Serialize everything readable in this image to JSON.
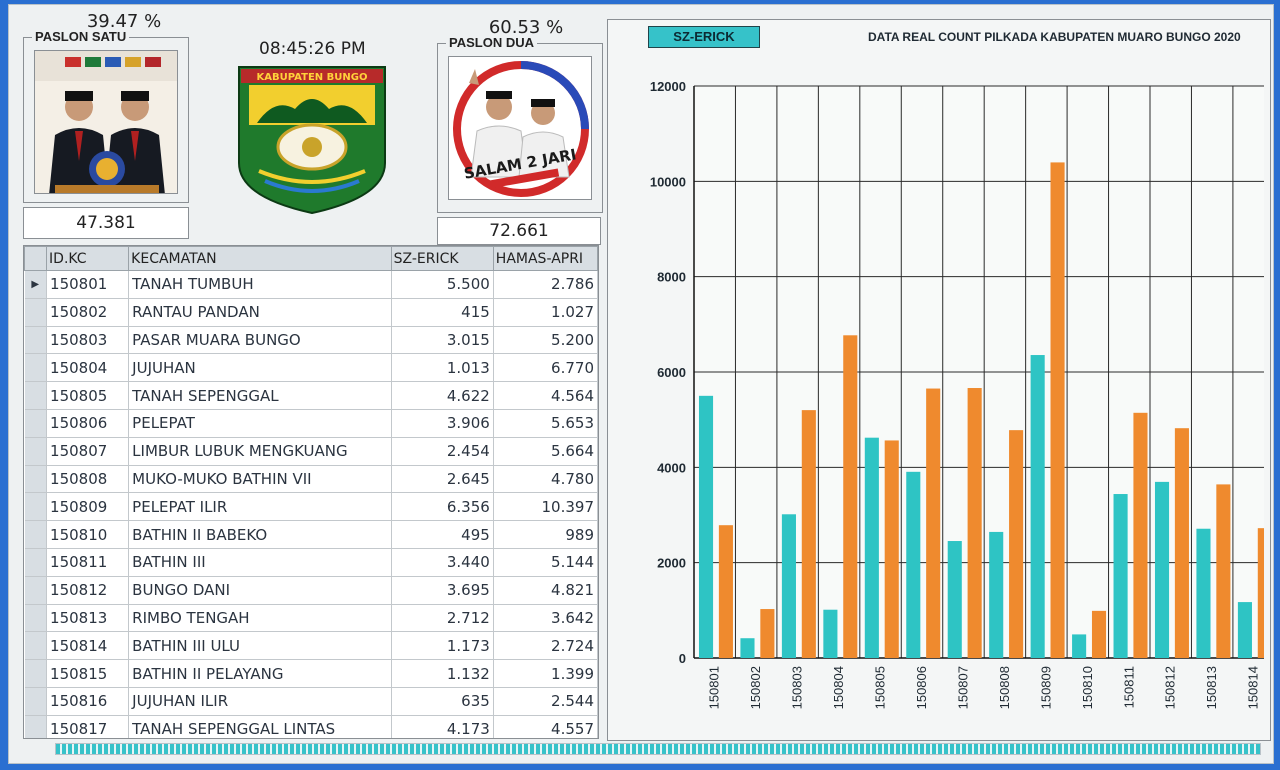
{
  "paslon_satu": {
    "percent": "39.47 %",
    "label": "PASLON SATU",
    "count": "47.381"
  },
  "paslon_dua": {
    "percent": "60.53 %",
    "label": "PASLON DUA",
    "count": "72.661"
  },
  "clock": "08:45:26 PM",
  "logo": {
    "banner_text": "KABUPATEN BUNGO"
  },
  "poster_text": "SALAM 2 JARI",
  "table": {
    "columns": [
      "ID.KC",
      "KECAMATAN",
      "SZ-ERICK",
      "HAMAS-APRI"
    ],
    "rows": [
      [
        "150801",
        "TANAH TUMBUH",
        "5.500",
        "2.786"
      ],
      [
        "150802",
        "RANTAU PANDAN",
        "415",
        "1.027"
      ],
      [
        "150803",
        "PASAR MUARA BUNGO",
        "3.015",
        "5.200"
      ],
      [
        "150804",
        "JUJUHAN",
        "1.013",
        "6.770"
      ],
      [
        "150805",
        "TANAH SEPENGGAL",
        "4.622",
        "4.564"
      ],
      [
        "150806",
        "PELEPAT",
        "3.906",
        "5.653"
      ],
      [
        "150807",
        "LIMBUR LUBUK MENGKUANG",
        "2.454",
        "5.664"
      ],
      [
        "150808",
        "MUKO-MUKO BATHIN VII",
        "2.645",
        "4.780"
      ],
      [
        "150809",
        "PELEPAT ILIR",
        "6.356",
        "10.397"
      ],
      [
        "150810",
        "BATHIN II BABEKO",
        "495",
        "989"
      ],
      [
        "150811",
        "BATHIN III",
        "3.440",
        "5.144"
      ],
      [
        "150812",
        "BUNGO DANI",
        "3.695",
        "4.821"
      ],
      [
        "150813",
        "RIMBO TENGAH",
        "2.712",
        "3.642"
      ],
      [
        "150814",
        "BATHIN III ULU",
        "1.173",
        "2.724"
      ],
      [
        "150815",
        "BATHIN II PELAYANG",
        "1.132",
        "1.399"
      ],
      [
        "150816",
        "JUJUHAN ILIR",
        "635",
        "2.544"
      ],
      [
        "150817",
        "TANAH SEPENGGAL LINTAS",
        "4.173",
        "4.557"
      ]
    ]
  },
  "chart_button": "SZ-ERICK",
  "chart_title": "DATA REAL COUNT PILKADA KABUPATEN MUARO BUNGO 2020",
  "chart_data": {
    "type": "bar",
    "categories": [
      "150801",
      "150802",
      "150803",
      "150804",
      "150805",
      "150806",
      "150807",
      "150808",
      "150809",
      "150810",
      "150811",
      "150812",
      "150813",
      "150814"
    ],
    "series": [
      {
        "name": "SZ-ERICK",
        "color": "#2ec4c4",
        "values": [
          5500,
          415,
          3015,
          1013,
          4622,
          3906,
          2454,
          2645,
          6356,
          495,
          3440,
          3695,
          2712,
          1173
        ]
      },
      {
        "name": "HAMAS-APRI",
        "color": "#ef8a2e",
        "values": [
          2786,
          1027,
          5200,
          6770,
          4564,
          5653,
          5664,
          4780,
          10397,
          989,
          5144,
          4821,
          3642,
          2724
        ]
      }
    ],
    "ylim": [
      0,
      12000
    ],
    "yticks": [
      0,
      2000,
      4000,
      6000,
      8000,
      10000,
      12000
    ],
    "grid": true
  },
  "colors": {
    "accent": "#36c2c9",
    "orange": "#ef8a2e",
    "window_bg": "#2a6fd1"
  }
}
